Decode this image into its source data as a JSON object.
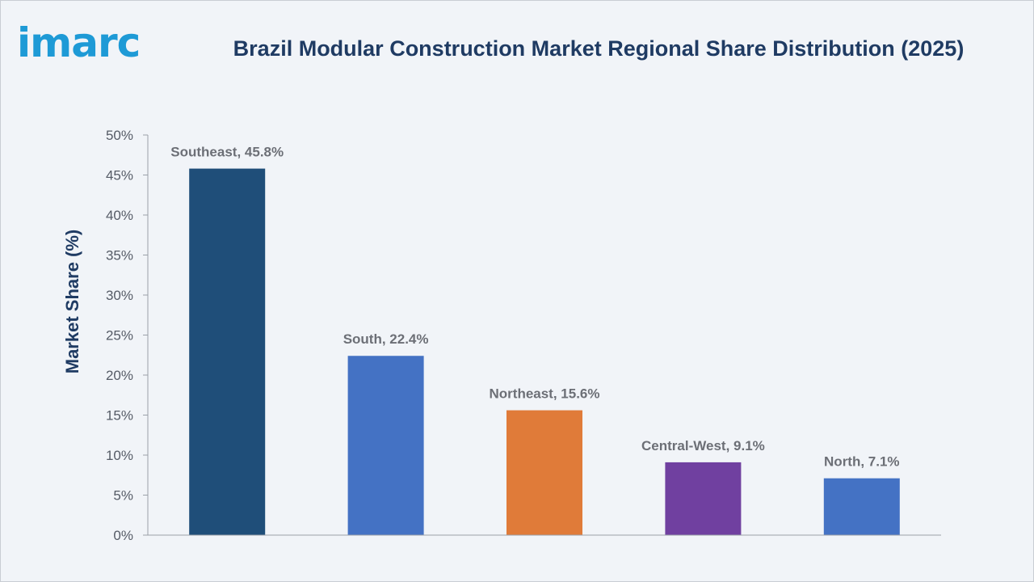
{
  "logo": {
    "text": "imarc"
  },
  "chart_data": {
    "type": "bar",
    "title": "Brazil Modular Construction Market Regional Share Distribution (2025)",
    "xlabel": "",
    "ylabel": "Market Share (%)",
    "ylim": [
      0,
      50
    ],
    "yticks": [
      0,
      5,
      10,
      15,
      20,
      25,
      30,
      35,
      40,
      45,
      50
    ],
    "ytick_labels": [
      "0%",
      "5%",
      "10%",
      "15%",
      "20%",
      "25%",
      "30%",
      "35%",
      "40%",
      "45%",
      "50%"
    ],
    "categories": [
      "Southeast",
      "South",
      "Northeast",
      "Central-West",
      "North"
    ],
    "values": [
      45.8,
      22.4,
      15.6,
      9.1,
      7.1
    ],
    "data_labels": [
      "Southeast, 45.8%",
      "South, 22.4%",
      "Northeast, 15.6%",
      "Central-West, 9.1%",
      "North, 7.1%"
    ],
    "colors": [
      "#1f4e79",
      "#4472c4",
      "#e07b39",
      "#7040a0",
      "#4472c4"
    ],
    "grid": false,
    "legend": "none"
  }
}
